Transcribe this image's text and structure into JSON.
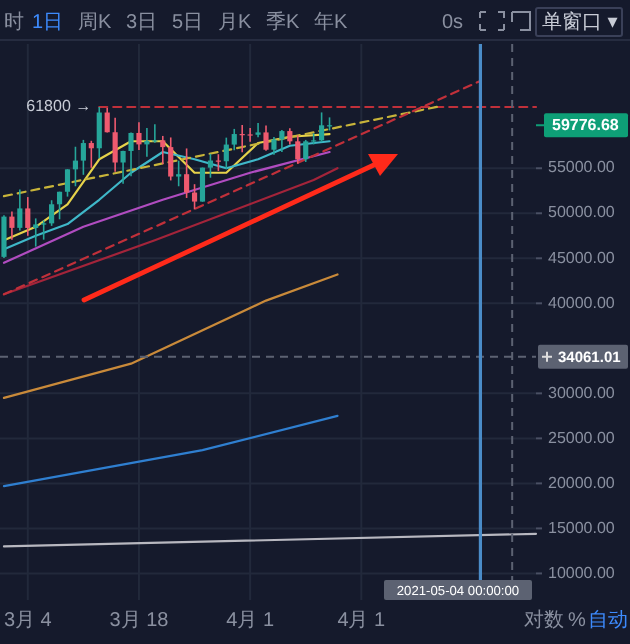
{
  "chart_data": {
    "type": "candlestick",
    "x": [
      "2021-03-01",
      "2021-03-02",
      "2021-03-03",
      "2021-03-04",
      "2021-03-05",
      "2021-03-06",
      "2021-03-07",
      "2021-03-08",
      "2021-03-09",
      "2021-03-10",
      "2021-03-11",
      "2021-03-12",
      "2021-03-13",
      "2021-03-14",
      "2021-03-15",
      "2021-03-16",
      "2021-03-17",
      "2021-03-18",
      "2021-03-19",
      "2021-03-20",
      "2021-03-21",
      "2021-03-22",
      "2021-03-23",
      "2021-03-24",
      "2021-03-25",
      "2021-03-26",
      "2021-03-27",
      "2021-03-28",
      "2021-03-29",
      "2021-03-30",
      "2021-03-31",
      "2021-04-01",
      "2021-04-02",
      "2021-04-03",
      "2021-04-04",
      "2021-04-05",
      "2021-04-06",
      "2021-04-07",
      "2021-04-08",
      "2021-04-09",
      "2021-04-10",
      "2021-04-11"
    ],
    "ohlc": [
      [
        45160,
        49790,
        45030,
        49630
      ],
      [
        49630,
        50200,
        47050,
        48380
      ],
      [
        48380,
        52640,
        48100,
        50540
      ],
      [
        50540,
        51800,
        47500,
        48370
      ],
      [
        48370,
        49430,
        46300,
        48760
      ],
      [
        48760,
        49200,
        47070,
        48880
      ],
      [
        48880,
        51450,
        48600,
        51000
      ],
      [
        51000,
        52400,
        49330,
        52390
      ],
      [
        52390,
        54900,
        51850,
        54880
      ],
      [
        54880,
        57390,
        53000,
        55850
      ],
      [
        55850,
        58150,
        54270,
        57800
      ],
      [
        57800,
        58050,
        55050,
        57220
      ],
      [
        57220,
        61800,
        56100,
        61190
      ],
      [
        61190,
        61680,
        58970,
        59000
      ],
      [
        59000,
        60600,
        54600,
        55640
      ],
      [
        55640,
        56940,
        53270,
        56920
      ],
      [
        56920,
        58980,
        54120,
        58920
      ],
      [
        58920,
        60100,
        57020,
        57650
      ],
      [
        57650,
        59470,
        56270,
        58030
      ],
      [
        58030,
        59880,
        57820,
        58100
      ],
      [
        58100,
        58590,
        55450,
        57350
      ],
      [
        57350,
        58420,
        53650,
        54080
      ],
      [
        54080,
        55840,
        53000,
        54340
      ],
      [
        54340,
        57200,
        51700,
        52300
      ],
      [
        52300,
        53230,
        50430,
        51300
      ],
      [
        51300,
        55080,
        51270,
        55070
      ],
      [
        55070,
        56600,
        53950,
        55860
      ],
      [
        55860,
        56560,
        54700,
        55780
      ],
      [
        55780,
        58400,
        54900,
        57630
      ],
      [
        57630,
        59370,
        57000,
        58800
      ],
      [
        58800,
        59800,
        56770,
        58760
      ],
      [
        58760,
        59470,
        57930,
        58720
      ],
      [
        58720,
        60040,
        58450,
        58980
      ],
      [
        58980,
        59760,
        56950,
        57060
      ],
      [
        57060,
        58480,
        56500,
        58200
      ],
      [
        58200,
        59250,
        56800,
        59130
      ],
      [
        59130,
        59450,
        57640,
        57990
      ],
      [
        57990,
        58650,
        55500,
        56000
      ],
      [
        56000,
        58150,
        55700,
        57990
      ],
      [
        57990,
        58880,
        57650,
        58100
      ],
      [
        58100,
        61200,
        57900,
        59770
      ],
      [
        59770,
        60650,
        59200,
        59780
      ]
    ],
    "colors": [
      "#26a69a",
      "#ef5a6f",
      "#26a69a",
      "#ef5a6f",
      "#26a69a",
      "#26a69a",
      "#26a69a",
      "#26a69a",
      "#26a69a",
      "#26a69a",
      "#26a69a",
      "#ef5a6f",
      "#26a69a",
      "#ef5a6f",
      "#ef5a6f",
      "#26a69a",
      "#26a69a",
      "#ef5a6f",
      "#26a69a",
      "#26a69a",
      "#ef5a6f",
      "#ef5a6f",
      "#26a69a",
      "#ef5a6f",
      "#ef5a6f",
      "#26a69a",
      "#26a69a",
      "#ef5a6f",
      "#26a69a",
      "#26a69a",
      "#ef5a6f",
      "#ef5a6f",
      "#26a69a",
      "#ef5a6f",
      "#26a69a",
      "#26a69a",
      "#ef5a6f",
      "#ef5a6f",
      "#26a69a",
      "#26a69a",
      "#26a69a",
      "#26a69a"
    ],
    "series": [
      {
        "type": "line",
        "color": "#e6d24a",
        "line_style": "solid",
        "x": [
          "2021-03-01",
          "2021-03-05",
          "2021-03-09",
          "2021-03-13",
          "2021-03-17",
          "2021-03-21",
          "2021-03-25",
          "2021-03-29",
          "2021-04-02",
          "2021-04-06",
          "2021-04-11"
        ],
        "values": [
          47000,
          48500,
          51000,
          56000,
          58000,
          58000,
          54500,
          54500,
          57800,
          58500,
          58800
        ]
      },
      {
        "type": "line",
        "color": "#3fb8c9",
        "line_style": "solid",
        "x": [
          "2021-03-01",
          "2021-03-05",
          "2021-03-09",
          "2021-03-13",
          "2021-03-17",
          "2021-03-21",
          "2021-03-25",
          "2021-03-29",
          "2021-04-02",
          "2021-04-06",
          "2021-04-11"
        ],
        "values": [
          46000,
          47500,
          48800,
          51500,
          54500,
          56800,
          56000,
          55000,
          56000,
          57500,
          58000
        ]
      },
      {
        "type": "line",
        "color": "#b04cc0",
        "line_style": "solid",
        "x": [
          "2021-03-01",
          "2021-03-11",
          "2021-03-21",
          "2021-04-01",
          "2021-04-11"
        ],
        "values": [
          44500,
          48500,
          51500,
          54500,
          56800
        ]
      },
      {
        "type": "line",
        "color": "#a3243a",
        "line_style": "solid",
        "x": [
          "2021-03-01",
          "2021-03-20",
          "2021-04-09",
          "2021-04-12"
        ],
        "values": [
          41000,
          47000,
          53700,
          55000
        ]
      },
      {
        "type": "line",
        "color": "#c98a3a",
        "line_style": "solid",
        "x": [
          "2021-03-01",
          "2021-03-17",
          "2021-04-03",
          "2021-04-12"
        ],
        "values": [
          29500,
          33300,
          40300,
          43200
        ]
      },
      {
        "type": "line",
        "color": "#2f7fd0",
        "line_style": "solid",
        "x": [
          "2021-03-01",
          "2021-03-26",
          "2021-04-12"
        ],
        "values": [
          19700,
          23700,
          27500
        ]
      },
      {
        "type": "line",
        "color": "#b8b8c0",
        "line_style": "solid",
        "x": [
          "2021-03-01",
          "2021-05-07"
        ],
        "values": [
          13000,
          14400
        ]
      },
      {
        "type": "line",
        "color": "#c0303a",
        "line_style": "dashed",
        "x": [
          "2021-03-13",
          "2021-05-07"
        ],
        "values": [
          61800,
          61800
        ]
      },
      {
        "type": "line",
        "color": "#c8b43a",
        "line_style": "dashed",
        "x": [
          "2021-03-01",
          "2021-04-25"
        ],
        "values": [
          51900,
          61900
        ]
      },
      {
        "type": "line",
        "color": "#c0303a",
        "line_style": "dashed",
        "x": [
          "2021-03-01",
          "2021-04-30"
        ],
        "values": [
          41000,
          64700
        ]
      }
    ],
    "xlim": [
      "2021-02-28T12:00",
      "2021-05-07T00:00"
    ],
    "xticks": [
      {
        "value": "2021-03-04",
        "label": "3月 4"
      },
      {
        "value": "2021-03-18",
        "label": "3月 18"
      },
      {
        "value": "2021-04-01",
        "label": "4月 1"
      },
      {
        "value": "2021-04-15",
        "label": "4月 1"
      }
    ],
    "ylim": [
      7050,
      68800
    ],
    "yticks": [
      {
        "value": 10000,
        "label": "10000.00"
      },
      {
        "value": 15000,
        "label": "15000.00"
      },
      {
        "value": 20000,
        "label": "20000.00"
      },
      {
        "value": 25000,
        "label": "25000.00"
      },
      {
        "value": 30000,
        "label": "30000.00"
      },
      {
        "value": 40000,
        "label": "40000.00"
      },
      {
        "value": 45000,
        "label": "45000.00"
      },
      {
        "value": 50000,
        "label": "50000.00"
      },
      {
        "value": 55000,
        "label": "55000.00"
      }
    ],
    "ref_lines": [
      {
        "axis": "y",
        "value": 59776.68,
        "label": "59776.68",
        "color": "#0e9f77"
      },
      {
        "axis": "y",
        "value": 34061.01,
        "label": "34061.01",
        "color": "#5c6272",
        "line_style": "dashed"
      },
      {
        "axis": "x",
        "value": "2021-05-04",
        "label": "2021-05-04 00:00:00",
        "color": "#5c6272",
        "line_style": "dashed"
      },
      {
        "axis": "x",
        "value": "2021-04-30",
        "color": "#4a8cc8",
        "line_style": "solid"
      }
    ],
    "annotations": [
      {
        "text": "61800 →",
        "x": "2021-03-13",
        "y": 61800
      },
      "时",
      "1日",
      "周K",
      "3日",
      "5日",
      "月K",
      "季K",
      "年K",
      "0s",
      "单窗口 ▾",
      "对数",
      "%",
      "自动"
    ],
    "grid": true,
    "marker": "none"
  }
}
